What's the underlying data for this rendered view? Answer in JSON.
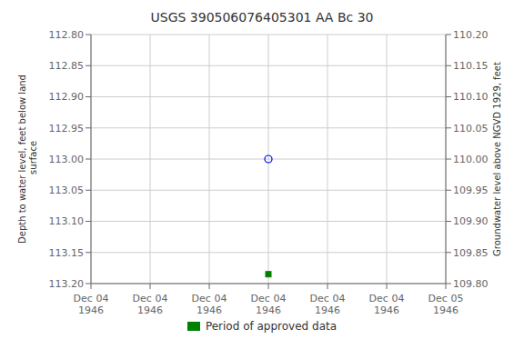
{
  "chart_data": {
    "type": "scatter",
    "title": "USGS 390506076405301 AA Bc  30",
    "ylabel": "Depth to water level, feet below land\n surface",
    "y2label": "Groundwater level above NGVD 1929, feet",
    "categories": [
      "Dec 04\n1946",
      "Dec 04\n1946",
      "Dec 04\n1946",
      "Dec 04\n1946",
      "Dec 04\n1946",
      "Dec 04\n1946",
      "Dec 05\n1946"
    ],
    "series": [
      {
        "color": "blue",
        "marker": "circle",
        "values": [
          null,
          null,
          null,
          113.0,
          null,
          null,
          null
        ]
      },
      {
        "name": "Period of approved data",
        "color": "#008000",
        "marker": "square",
        "values": [
          null,
          null,
          null,
          113.185,
          null,
          null,
          null
        ]
      }
    ],
    "ylim": [
      113.2,
      112.8
    ],
    "yticks": [
      {
        "value": 112.8,
        "label": "112.80"
      },
      {
        "value": 112.85,
        "label": "112.85"
      },
      {
        "value": 112.9,
        "label": "112.90"
      },
      {
        "value": 112.95,
        "label": "112.95"
      },
      {
        "value": 113.0,
        "label": "113.00"
      },
      {
        "value": 113.05,
        "label": "113.05"
      },
      {
        "value": 113.1,
        "label": "113.10"
      },
      {
        "value": 113.15,
        "label": "113.15"
      },
      {
        "value": 113.2,
        "label": "113.20"
      }
    ],
    "y2lim": [
      109.8,
      110.2
    ],
    "y2ticks": [
      {
        "value": 110.2,
        "label": "110.20"
      },
      {
        "value": 110.15,
        "label": "110.15"
      },
      {
        "value": 110.1,
        "label": "110.10"
      },
      {
        "value": 110.05,
        "label": "110.05"
      },
      {
        "value": 110.0,
        "label": "110.00"
      },
      {
        "value": 109.95,
        "label": "109.95"
      },
      {
        "value": 109.9,
        "label": "109.90"
      },
      {
        "value": 109.85,
        "label": "109.85"
      },
      {
        "value": 109.8,
        "label": "109.80"
      }
    ],
    "grid": true,
    "legend": "bottom"
  }
}
